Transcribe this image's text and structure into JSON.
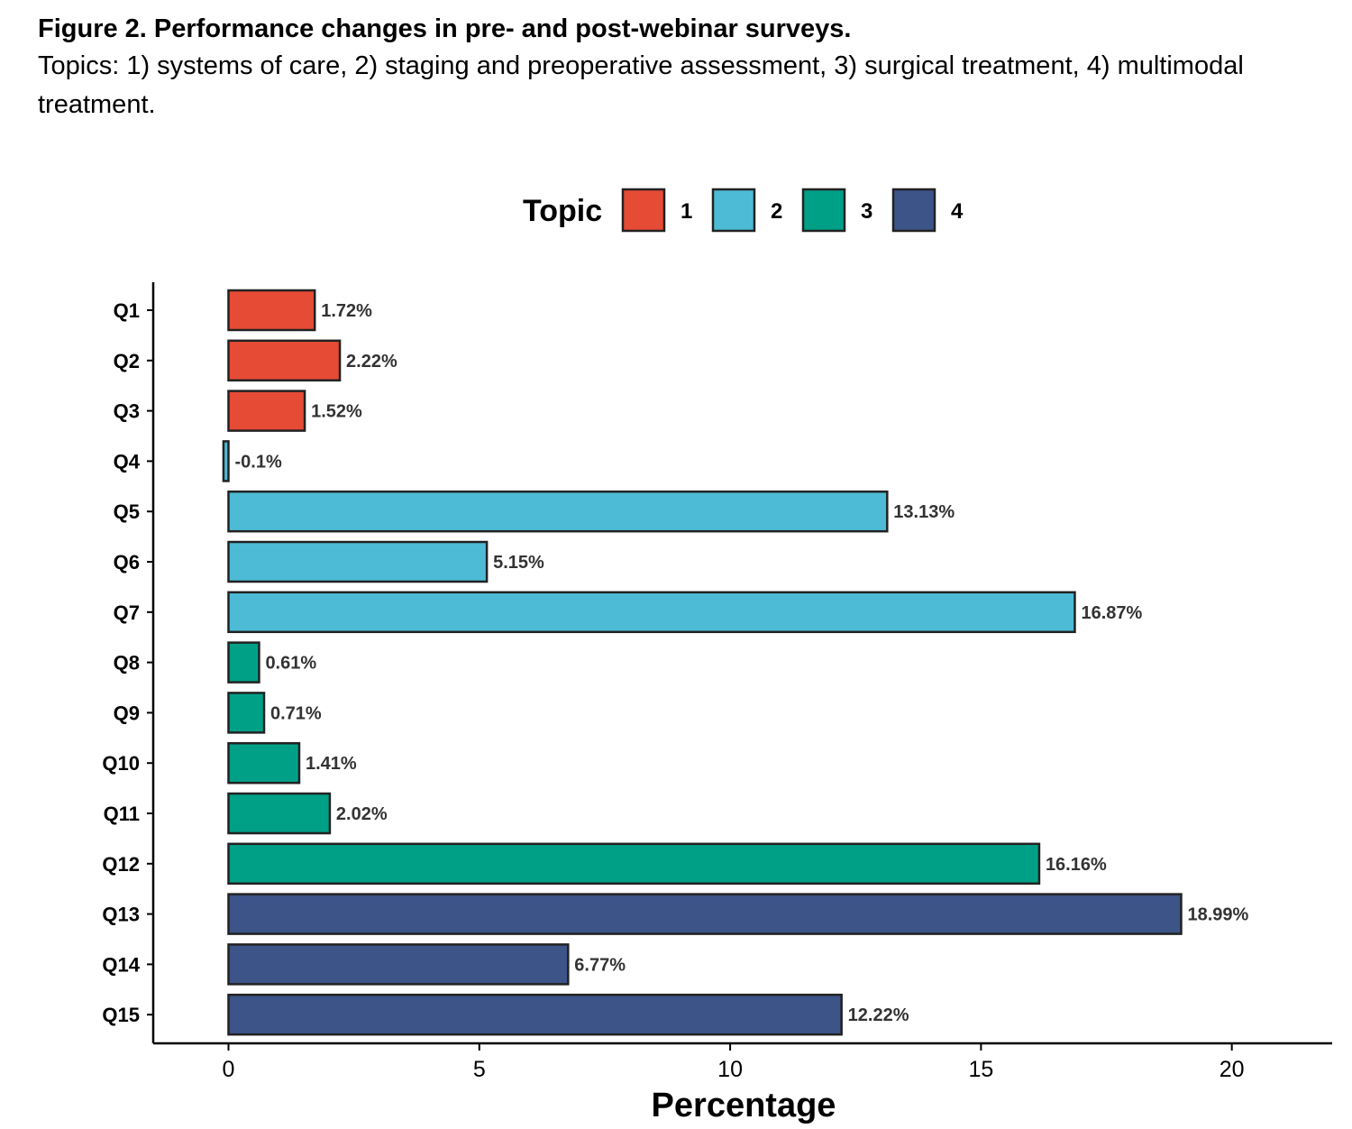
{
  "caption": {
    "title": "Figure 2. Performance changes in pre- and post-webinar surveys.",
    "subtitle": "Topics: 1) systems of care, 2) staging and preoperative assessment, 3) surgical treatment, 4) multimodal treatment."
  },
  "chart_data": {
    "type": "bar",
    "orientation": "horizontal",
    "categories": [
      "Q1",
      "Q2",
      "Q3",
      "Q4",
      "Q5",
      "Q6",
      "Q7",
      "Q8",
      "Q9",
      "Q10",
      "Q11",
      "Q12",
      "Q13",
      "Q14",
      "Q15"
    ],
    "values": [
      1.72,
      2.22,
      1.52,
      -0.1,
      13.13,
      5.15,
      16.87,
      0.61,
      0.71,
      1.41,
      2.02,
      16.16,
      18.99,
      6.77,
      12.22
    ],
    "value_labels": [
      "1.72%",
      "2.22%",
      "1.52%",
      "-0.1%",
      "13.13%",
      "5.15%",
      "16.87%",
      "0.61%",
      "0.71%",
      "1.41%",
      "2.02%",
      "16.16%",
      "18.99%",
      "6.77%",
      "12.22%"
    ],
    "topics": [
      "1",
      "1",
      "1",
      "2",
      "2",
      "2",
      "2",
      "3",
      "3",
      "3",
      "3",
      "3",
      "4",
      "4",
      "4"
    ],
    "legend": {
      "title": "Topic",
      "placement": "top",
      "entries": [
        {
          "name": "1",
          "color": "#E64B35"
        },
        {
          "name": "2",
          "color": "#4DBBD5"
        },
        {
          "name": "3",
          "color": "#00A087"
        },
        {
          "name": "4",
          "color": "#3C5488"
        }
      ]
    },
    "xlabel": "Percentage",
    "ylabel": "",
    "xlim": [
      -1.5,
      22
    ],
    "xticks": [
      0,
      5,
      10,
      15,
      20
    ],
    "xtick_labels": [
      "0",
      "5",
      "10",
      "15",
      "20"
    ],
    "grid": false,
    "bar_outline_color": "#222222"
  }
}
